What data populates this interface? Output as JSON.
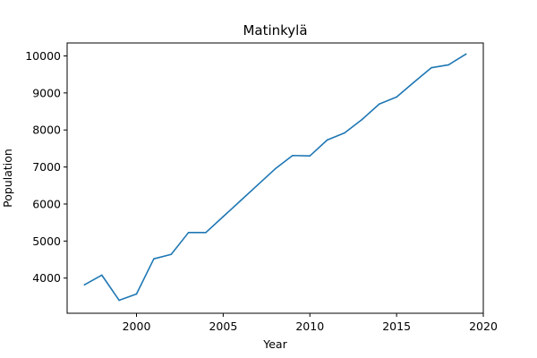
{
  "chart_data": {
    "type": "line",
    "title": "Matinkylä",
    "xlabel": "Year",
    "ylabel": "Population",
    "xlim": [
      1996,
      2020
    ],
    "ylim": [
      3050,
      10350
    ],
    "xticks": [
      2000,
      2005,
      2010,
      2015,
      2020
    ],
    "yticks": [
      4000,
      5000,
      6000,
      7000,
      8000,
      9000,
      10000
    ],
    "grid": false,
    "series": [
      {
        "color": "#1f77b4",
        "x": [
          1997,
          1998,
          1999,
          2000,
          2001,
          2002,
          2003,
          2004,
          2005,
          2006,
          2007,
          2008,
          2009,
          2010,
          2011,
          2012,
          2013,
          2014,
          2015,
          2016,
          2017,
          2018,
          2019
        ],
        "y": [
          3820,
          4080,
          3400,
          3570,
          4520,
          4640,
          5230,
          5230,
          5660,
          6090,
          6520,
          6950,
          7310,
          7300,
          7730,
          7920,
          8280,
          8700,
          8890,
          9290,
          9680,
          9760,
          10050
        ]
      }
    ]
  }
}
